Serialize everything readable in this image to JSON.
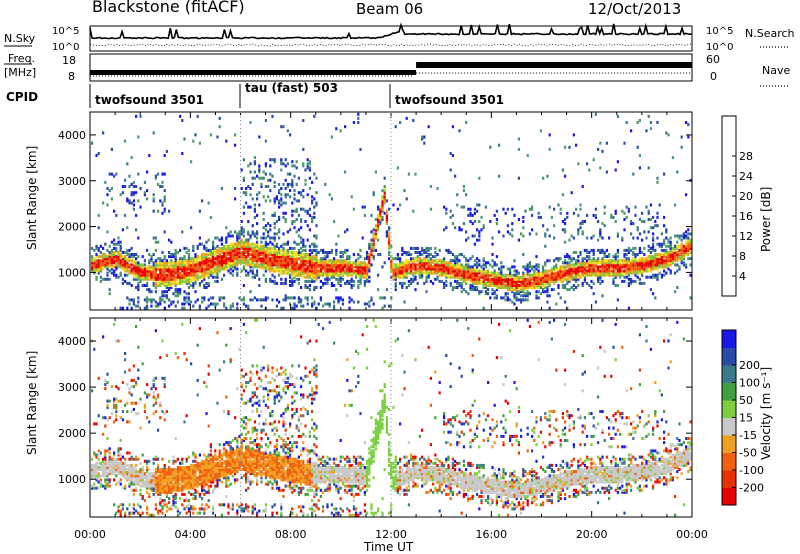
{
  "header": {
    "station": "Blackstone (fitACF)",
    "beam": "Beam 06",
    "date": "12/Oct/2013"
  },
  "noise_panel": {
    "left_label": "N.Sky",
    "right_label": "N.Search",
    "left_ticks": [
      "10^5",
      "10^0"
    ],
    "right_ticks": [
      "10^5",
      "10^0"
    ]
  },
  "freq_panel": {
    "left_label_line1": "Freq.",
    "left_label_line2": "[MHz]",
    "left_ticks": [
      "18",
      "8"
    ],
    "right_label": "Nave",
    "right_ticks": [
      "60",
      "0"
    ]
  },
  "cpid": {
    "label": "CPID",
    "segments": [
      {
        "name": "twofsound 3501",
        "start": 0,
        "end": 6
      },
      {
        "name": "tau (fast) 503",
        "start": 6,
        "end": 12
      },
      {
        "name": "twofsound 3501",
        "start": 12,
        "end": 24
      }
    ]
  },
  "colors": {
    "power_scale": [
      "#1818e8",
      "#2a4aa8",
      "#3a7a8a",
      "#4a9a6a",
      "#7ac840",
      "#f0e020",
      "#f0a020",
      "#f06010",
      "#e80000"
    ],
    "velocity_scale": [
      "#1818e8",
      "#2a4aa8",
      "#3a7a8a",
      "#40a040",
      "#7cd040",
      "#c8c8c8",
      "#f0a020",
      "#f06010",
      "#e83000",
      "#e80000"
    ]
  },
  "chart_data": [
    {
      "type": "heatmap",
      "name": "power",
      "xlabel": "Time UT",
      "ylabel": "Slant Range [km]",
      "xlim": [
        0,
        24
      ],
      "ylim": [
        180,
        4500
      ],
      "x_ticks": [
        "00:00",
        "04:00",
        "08:00",
        "12:00",
        "16:00",
        "20:00",
        "00:00"
      ],
      "y_ticks": [
        1000,
        2000,
        3000,
        4000
      ],
      "colorbar_label": "Power [dB]",
      "colorbar_ticks": [
        "4",
        "8",
        "12",
        "16",
        "20",
        "24",
        "28"
      ],
      "echo_bands": [
        {
          "t": [
            0,
            1,
            2,
            3,
            4,
            5,
            6,
            7,
            8,
            9,
            10,
            11,
            11.7,
            12,
            13,
            14,
            15,
            16,
            17,
            18,
            19,
            20,
            21,
            22,
            23,
            24
          ],
          "range_km": [
            1150,
            1300,
            1000,
            950,
            1050,
            1250,
            1450,
            1300,
            1200,
            1100,
            1100,
            1050,
            2700,
            1000,
            1150,
            1100,
            950,
            850,
            750,
            850,
            1000,
            1100,
            1100,
            1150,
            1300,
            1600
          ]
        }
      ]
    },
    {
      "type": "heatmap",
      "name": "velocity",
      "xlabel": "Time UT",
      "ylabel": "Slant Range [km]",
      "xlim": [
        0,
        24
      ],
      "ylim": [
        180,
        4500
      ],
      "x_ticks": [
        "00:00",
        "04:00",
        "08:00",
        "12:00",
        "16:00",
        "20:00",
        "00:00"
      ],
      "y_ticks": [
        1000,
        2000,
        3000,
        4000
      ],
      "colorbar_label": "Velocity [m s⁻¹]",
      "colorbar_ticks": [
        "200",
        "100",
        "50",
        "15",
        "-15",
        "-50",
        "-100",
        "-200"
      ]
    }
  ]
}
